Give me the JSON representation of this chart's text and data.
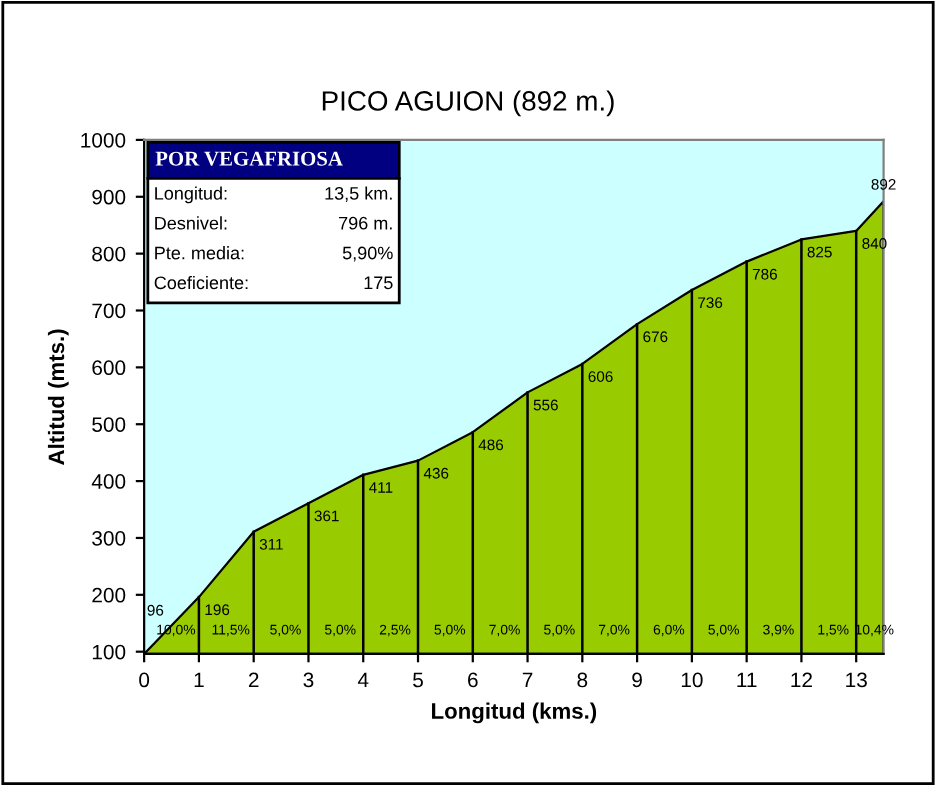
{
  "chart_data": {
    "type": "area",
    "title": "PICO AGUION (892 m.)",
    "xlabel": "Longitud (kms.)",
    "ylabel": "Altitud (mts.)",
    "x": [
      0,
      1,
      2,
      3,
      4,
      5,
      6,
      7,
      8,
      9,
      10,
      11,
      12,
      13,
      13.5
    ],
    "series": [
      {
        "color": "#99cc00",
        "values": [
          96,
          196,
          311,
          361,
          411,
          436,
          486,
          556,
          606,
          676,
          736,
          786,
          825,
          840,
          892
        ]
      }
    ],
    "data_labels": true,
    "xlim": [
      0,
      13.5
    ],
    "xticks": [
      0,
      1,
      2,
      3,
      4,
      5,
      6,
      7,
      8,
      9,
      10,
      11,
      12,
      13
    ],
    "ylim": [
      96,
      1000
    ],
    "yticks": [
      100,
      200,
      300,
      400,
      500,
      600,
      700,
      800,
      900,
      1000
    ],
    "grid": "x",
    "annotations": [
      "POR VEGAFRIOSA",
      "Longitud:",
      "13,5 km.",
      "Desnivel:",
      "796 m.",
      "Pte. media:",
      "5,90%",
      "Coeficiente:",
      "175",
      "10,0%",
      "11,5%",
      "5,0%",
      "5,0%",
      "2,5%",
      "5,0%",
      "7,0%",
      "5,0%",
      "7,0%",
      "6,0%",
      "5,0%",
      "3,9%",
      "1,5%",
      "10,4%"
    ]
  }
}
